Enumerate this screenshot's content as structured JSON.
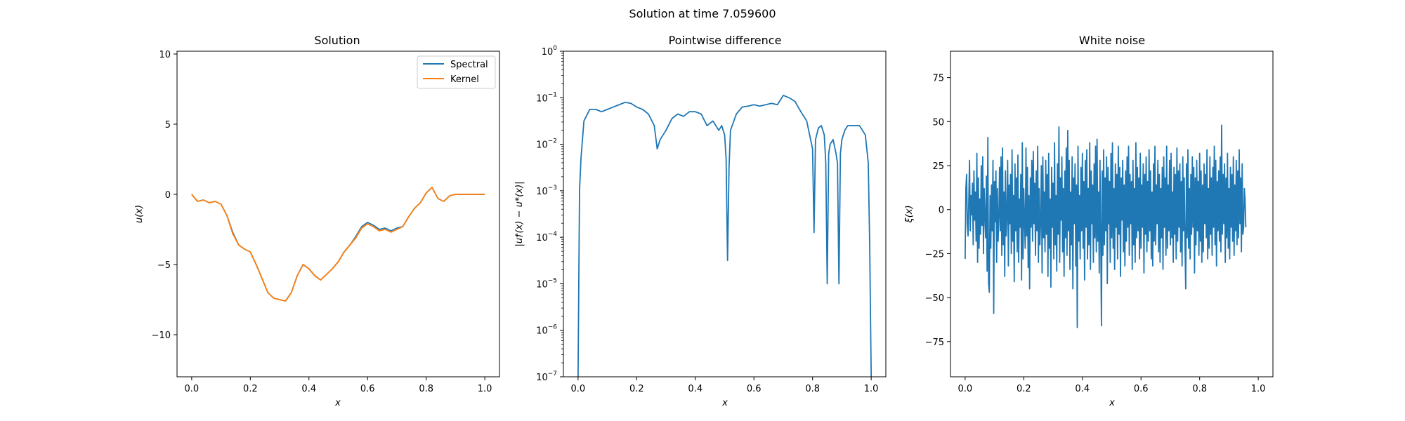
{
  "figure": {
    "suptitle": "Solution at time 7.059600"
  },
  "colors": {
    "spectral": "#1f77b4",
    "kernel": "#ff7f0e",
    "frame": "#000000"
  },
  "chart_data": [
    {
      "type": "line",
      "title": "Solution",
      "xlabel": "x",
      "ylabel": "u(x)",
      "xlim": [
        -0.05,
        1.05
      ],
      "ylim": [
        -13.0,
        10.2
      ],
      "xticks": [
        0,
        0.2,
        0.4,
        0.6,
        0.8,
        1.0
      ],
      "xtick_labels": [
        "0.0",
        "0.2",
        "0.4",
        "0.6",
        "0.8",
        "1.0"
      ],
      "yticks": [
        10,
        5,
        0,
        -5,
        -10
      ],
      "ytick_labels": [
        "10",
        "5",
        "0",
        "−5",
        "−10"
      ],
      "legend": {
        "position": "top-right",
        "entries": [
          "Spectral",
          "Kernel"
        ]
      },
      "series": [
        {
          "name": "Spectral",
          "color": "#1f77b4",
          "x": [
            0.0,
            0.02,
            0.04,
            0.06,
            0.08,
            0.1,
            0.12,
            0.14,
            0.16,
            0.18,
            0.2,
            0.22,
            0.24,
            0.26,
            0.28,
            0.3,
            0.32,
            0.34,
            0.36,
            0.38,
            0.4,
            0.42,
            0.44,
            0.46,
            0.48,
            0.5,
            0.52,
            0.54,
            0.56,
            0.58,
            0.6,
            0.62,
            0.64,
            0.66,
            0.68,
            0.7,
            0.72,
            0.74,
            0.76,
            0.78,
            0.8,
            0.82,
            0.84,
            0.86,
            0.88,
            0.9,
            0.92,
            0.94,
            0.96,
            0.98,
            1.0
          ],
          "y": [
            0.0,
            -0.5,
            -0.4,
            -0.6,
            -0.5,
            -0.7,
            -1.5,
            -2.7,
            -3.6,
            -3.9,
            -4.1,
            -5.0,
            -6.0,
            -7.0,
            -7.4,
            -7.5,
            -7.6,
            -7.0,
            -5.8,
            -5.0,
            -5.3,
            -5.8,
            -6.1,
            -5.7,
            -5.3,
            -4.8,
            -4.1,
            -3.6,
            -3.0,
            -2.3,
            -2.0,
            -2.2,
            -2.5,
            -2.4,
            -2.6,
            -2.4,
            -2.3,
            -1.6,
            -1.0,
            -0.6,
            0.1,
            0.5,
            -0.3,
            -0.5,
            -0.1,
            0.0,
            0.0,
            0.0,
            0.0,
            0.0,
            0.0
          ]
        },
        {
          "name": "Kernel",
          "color": "#ff7f0e",
          "x": [
            0.0,
            0.02,
            0.04,
            0.06,
            0.08,
            0.1,
            0.12,
            0.14,
            0.16,
            0.18,
            0.2,
            0.22,
            0.24,
            0.26,
            0.28,
            0.3,
            0.32,
            0.34,
            0.36,
            0.38,
            0.4,
            0.42,
            0.44,
            0.46,
            0.48,
            0.5,
            0.52,
            0.54,
            0.56,
            0.58,
            0.6,
            0.62,
            0.64,
            0.66,
            0.68,
            0.7,
            0.72,
            0.74,
            0.76,
            0.78,
            0.8,
            0.82,
            0.84,
            0.86,
            0.88,
            0.9,
            0.92,
            0.94,
            0.96,
            0.98,
            1.0
          ],
          "y": [
            0.0,
            -0.5,
            -0.4,
            -0.6,
            -0.5,
            -0.7,
            -1.5,
            -2.8,
            -3.6,
            -3.9,
            -4.1,
            -5.0,
            -6.0,
            -7.0,
            -7.4,
            -7.5,
            -7.6,
            -7.0,
            -5.8,
            -5.0,
            -5.3,
            -5.8,
            -6.1,
            -5.7,
            -5.3,
            -4.8,
            -4.1,
            -3.6,
            -3.1,
            -2.4,
            -2.1,
            -2.3,
            -2.6,
            -2.5,
            -2.7,
            -2.5,
            -2.3,
            -1.6,
            -1.0,
            -0.6,
            0.1,
            0.5,
            -0.3,
            -0.5,
            -0.1,
            0.0,
            0.0,
            0.0,
            0.0,
            0.0,
            0.0
          ]
        }
      ]
    },
    {
      "type": "line",
      "yscale": "log",
      "title": "Pointwise difference",
      "xlabel": "x",
      "ylabel": "|u†(x) − u*(x)|",
      "xlim": [
        -0.05,
        1.05
      ],
      "ylim_log10": [
        -7,
        0
      ],
      "xticks": [
        0,
        0.2,
        0.4,
        0.6,
        0.8,
        1.0
      ],
      "xtick_labels": [
        "0.0",
        "0.2",
        "0.4",
        "0.6",
        "0.8",
        "1.0"
      ],
      "ytick_exponents": [
        0,
        -1,
        -2,
        -3,
        -4,
        -5,
        -6,
        -7
      ],
      "ytick_base": "10",
      "series": [
        {
          "name": "difference",
          "color": "#1f77b4",
          "x": [
            0.0,
            0.005,
            0.01,
            0.02,
            0.04,
            0.06,
            0.08,
            0.1,
            0.12,
            0.14,
            0.16,
            0.18,
            0.2,
            0.22,
            0.24,
            0.26,
            0.27,
            0.28,
            0.3,
            0.32,
            0.34,
            0.36,
            0.38,
            0.4,
            0.42,
            0.44,
            0.46,
            0.47,
            0.48,
            0.49,
            0.5,
            0.505,
            0.51,
            0.515,
            0.52,
            0.54,
            0.56,
            0.58,
            0.6,
            0.62,
            0.64,
            0.66,
            0.68,
            0.7,
            0.72,
            0.74,
            0.76,
            0.78,
            0.79,
            0.8,
            0.805,
            0.81,
            0.82,
            0.83,
            0.84,
            0.845,
            0.85,
            0.855,
            0.86,
            0.87,
            0.88,
            0.885,
            0.89,
            0.895,
            0.9,
            0.91,
            0.92,
            0.94,
            0.96,
            0.97,
            0.98,
            0.99,
            0.995,
            1.0
          ],
          "log10_y": [
            -7.0,
            -3.0,
            -2.3,
            -1.5,
            -1.25,
            -1.25,
            -1.3,
            -1.25,
            -1.2,
            -1.15,
            -1.1,
            -1.12,
            -1.2,
            -1.25,
            -1.35,
            -1.6,
            -2.1,
            -1.9,
            -1.7,
            -1.45,
            -1.35,
            -1.4,
            -1.3,
            -1.3,
            -1.35,
            -1.6,
            -1.5,
            -1.6,
            -1.7,
            -1.6,
            -1.8,
            -2.3,
            -4.5,
            -2.5,
            -1.7,
            -1.35,
            -1.2,
            -1.18,
            -1.15,
            -1.18,
            -1.15,
            -1.12,
            -1.15,
            -0.95,
            -1.0,
            -1.08,
            -1.3,
            -1.5,
            -1.8,
            -2.1,
            -3.9,
            -1.9,
            -1.65,
            -1.6,
            -1.8,
            -2.4,
            -5.0,
            -2.2,
            -2.0,
            -1.9,
            -2.2,
            -2.4,
            -5.0,
            -2.2,
            -1.9,
            -1.7,
            -1.6,
            -1.6,
            -1.6,
            -1.7,
            -1.8,
            -2.4,
            -4.2,
            -7.0
          ]
        }
      ]
    },
    {
      "type": "line",
      "title": "White noise",
      "xlabel": "x",
      "ylabel": "ξ(x)",
      "xlim": [
        -0.05,
        1.05
      ],
      "ylim": [
        -95,
        90
      ],
      "xticks": [
        0,
        0.2,
        0.4,
        0.6,
        0.8,
        1.0
      ],
      "xtick_labels": [
        "0.0",
        "0.2",
        "0.4",
        "0.6",
        "0.8",
        "1.0"
      ],
      "yticks": [
        75,
        50,
        25,
        0,
        -25,
        -50,
        -75
      ],
      "ytick_labels": [
        "75",
        "50",
        "25",
        "0",
        "−25",
        "−50",
        "−75"
      ],
      "series": [
        {
          "name": "noise",
          "color": "#1f77b4",
          "x_start": 0.0,
          "x_step": 0.0025,
          "y": [
            -28,
            12,
            20,
            -8,
            -15,
            5,
            28,
            -12,
            8,
            -3,
            15,
            -20,
            22,
            -6,
            10,
            -18,
            32,
            -30,
            18,
            -22,
            6,
            -14,
            25,
            -9,
            30,
            -25,
            12,
            -4,
            -16,
            19,
            -35,
            41,
            -42,
            -47,
            8,
            -22,
            14,
            -12,
            28,
            -59,
            16,
            -7,
            22,
            -30,
            12,
            -18,
            -5,
            24,
            -12,
            30,
            -26,
            35,
            -20,
            10,
            -38,
            22,
            -15,
            -4,
            28,
            -32,
            14,
            -8,
            20,
            -25,
            34,
            -18,
            8,
            -41,
            26,
            -12,
            18,
            -24,
            31,
            -30,
            6,
            -10,
            20,
            -40,
            38,
            -28,
            12,
            -6,
            -22,
            35,
            -15,
            24,
            -33,
            8,
            -45,
            18,
            -10,
            28,
            -18,
            33,
            -8,
            15,
            -26,
            22,
            -12,
            36,
            -30,
            12,
            -20,
            -7,
            25,
            -36,
            30,
            -16,
            10,
            -24,
            28,
            -14,
            20,
            -38,
            32,
            -22,
            6,
            -44,
            24,
            -10,
            15,
            -28,
            38,
            -20,
            8,
            -35,
            26,
            -14,
            47,
            -30,
            18,
            -6,
            30,
            -24,
            12,
            -38,
            22,
            -16,
            35,
            -26,
            45,
            -12,
            28,
            -34,
            10,
            -20,
            30,
            -45,
            18,
            -8,
            26,
            -32,
            14,
            -67,
            36,
            -18,
            8,
            -28,
            24,
            -12,
            32,
            -22,
            16,
            -40,
            28,
            -10,
            34,
            -28,
            12,
            -20,
            38,
            -34,
            22,
            -8,
            14,
            -30,
            26,
            -16,
            36,
            -24,
            40,
            -18,
            10,
            -36,
            28,
            -14,
            -66,
            22,
            -26,
            34,
            -20,
            18,
            -12,
            30,
            -42,
            24,
            -8,
            16,
            -30,
            32,
            -16,
            38,
            -22,
            12,
            -34,
            26,
            -10,
            20,
            -28,
            36,
            -14,
            24,
            -38,
            18,
            -6,
            28,
            -24,
            14,
            -32,
            22,
            -18,
            30,
            -10,
            36,
            -26,
            20,
            -8,
            16,
            -34,
            28,
            -20,
            12,
            -30,
            38,
            -16,
            24,
            -12,
            18,
            -28,
            32,
            -22,
            14,
            -10,
            26,
            -36,
            20,
            -14,
            30,
            -24,
            16,
            -18,
            34,
            -12,
            22,
            -28,
            10,
            -32,
            26,
            -18,
            36,
            -20,
            14,
            -8,
            28,
            -24,
            20,
            -30,
            12,
            -16,
            24,
            -34,
            30,
            -10,
            18,
            -26,
            36,
            -22,
            14,
            -12,
            28,
            -20,
            32,
            -16,
            10,
            -30,
            24,
            -14,
            20,
            -28,
            35,
            -18,
            22,
            -10,
            26,
            -24,
            16,
            -32,
            30,
            -12,
            18,
            -20,
            -45,
            26,
            -16,
            34,
            -22,
            12,
            -28,
            20,
            -14,
            30,
            -10,
            24,
            -36,
            18,
            -20,
            28,
            -12,
            16,
            -26,
            32,
            -18,
            22,
            -30,
            14,
            -24,
            26,
            -8,
            20,
            -16,
            34,
            -28,
            12,
            -22,
            30,
            -14,
            18,
            -26,
            24,
            -10,
            36,
            -20,
            28,
            -32,
            16,
            -12,
            22,
            -18,
            30,
            -24,
            48,
            -14,
            20,
            -8,
            26,
            -30,
            18,
            -16,
            32,
            -22,
            12,
            -28,
            24,
            -10,
            20,
            -18,
            30,
            -26,
            14,
            -12,
            28,
            -20,
            22,
            -16,
            34,
            -8,
            18,
            -24,
            26,
            -14,
            -10,
            12,
            5,
            -10
          ]
        }
      ]
    }
  ]
}
